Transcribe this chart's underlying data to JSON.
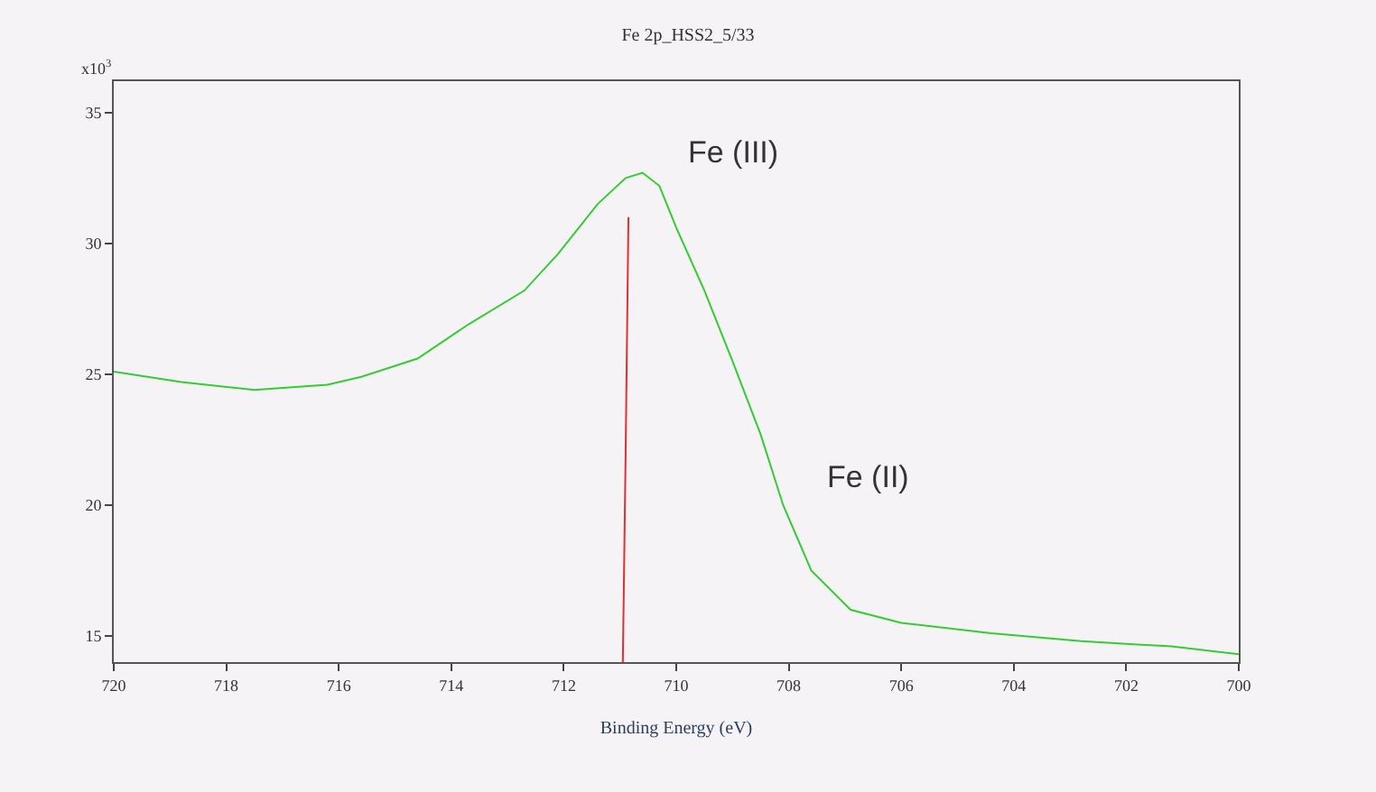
{
  "chart_data": {
    "type": "line",
    "title": "Fe 2p_HSS2_5/33",
    "xlabel": "Binding Energy (eV)",
    "annotations": [
      "x10$^{3}$",
      "Fe (III)",
      "Fe (II)"
    ],
    "xlim": [
      720,
      700
    ],
    "xticks": [
      720,
      718,
      716,
      714,
      712,
      710,
      708,
      706,
      704,
      702,
      700
    ],
    "ylim": [
      14,
      36.2
    ],
    "yticks": [
      15,
      20,
      25,
      30,
      35
    ],
    "grid": false,
    "series": [
      {
        "color": "#33cc33",
        "x": [
          720,
          718.8,
          717.5,
          716.2,
          715.6,
          714.6,
          713.7,
          712.7,
          712.1,
          711.4,
          710.9,
          710.6,
          710.3,
          710.0,
          709.5,
          709.0,
          708.5,
          708.1,
          707.6,
          706.9,
          706.0,
          704.4,
          702.8,
          701.2,
          700.0
        ],
        "values": [
          25.1,
          24.7,
          24.4,
          24.6,
          24.9,
          25.6,
          26.9,
          28.2,
          29.6,
          31.5,
          32.5,
          32.7,
          32.2,
          30.6,
          28.2,
          25.5,
          22.7,
          20.0,
          17.5,
          16.0,
          15.5,
          15.1,
          14.8,
          14.6,
          14.3
        ]
      },
      {
        "color": "#e03030",
        "x": [
          710.85,
          710.9,
          710.95
        ],
        "values": [
          31.0,
          22.0,
          14.0
        ]
      }
    ]
  }
}
